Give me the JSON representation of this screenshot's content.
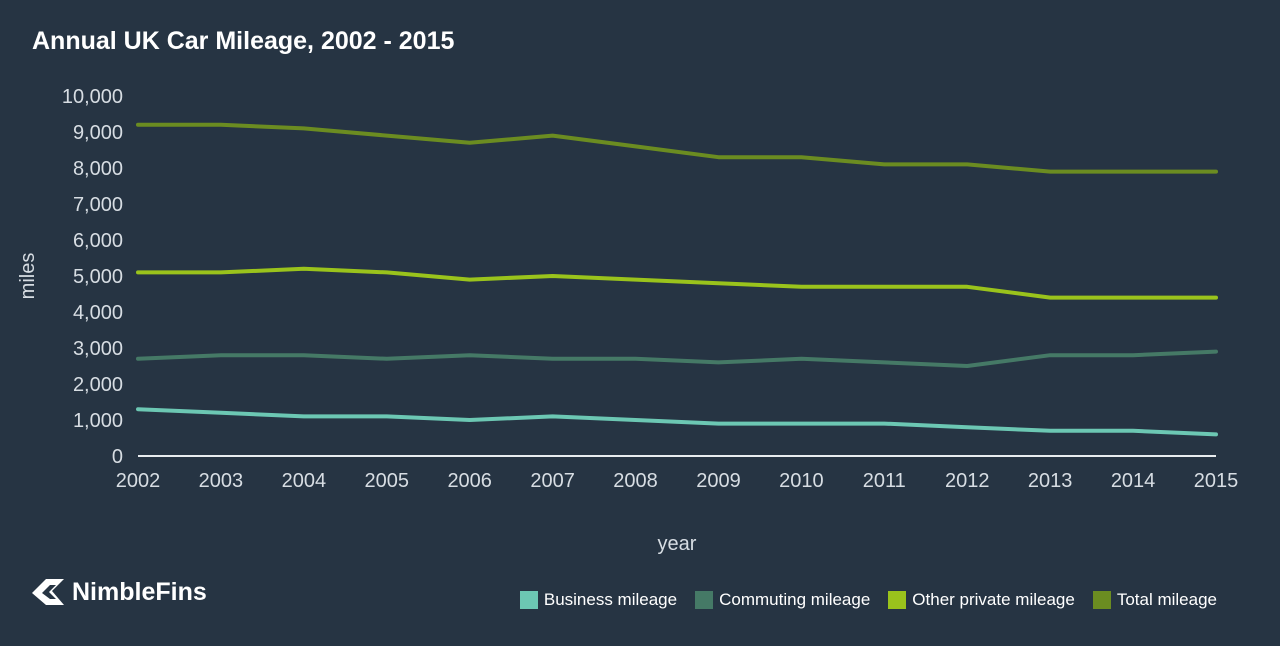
{
  "title": "Annual UK Car Mileage, 2002 - 2015",
  "brand": {
    "name": "NimbleFins",
    "icon": "nimblefins-logo-icon"
  },
  "colors": {
    "background": "#263443",
    "text": "#ffffff",
    "axis_text": "#d7dde3",
    "baseline": "#e8ecef"
  },
  "chart_data": {
    "type": "line",
    "title": "Annual UK Car Mileage, 2002 - 2015",
    "xlabel": "year",
    "ylabel": "miles",
    "x": [
      "2002",
      "2003",
      "2004",
      "2005",
      "2006",
      "2007",
      "2008",
      "2009",
      "2010",
      "2011",
      "2012",
      "2013",
      "2014",
      "2015"
    ],
    "y_ticks": [
      "0",
      "1,000",
      "2,000",
      "3,000",
      "4,000",
      "5,000",
      "6,000",
      "7,000",
      "8,000",
      "9,000",
      "10,000"
    ],
    "ylim": [
      0,
      10000
    ],
    "grid": false,
    "legend_position": "bottom-right",
    "series": [
      {
        "name": "Business mileage",
        "color": "#6cc7b3",
        "values": [
          1300,
          1200,
          1100,
          1100,
          1000,
          1100,
          1000,
          900,
          900,
          900,
          800,
          700,
          700,
          600
        ]
      },
      {
        "name": "Commuting mileage",
        "color": "#457966",
        "values": [
          2700,
          2800,
          2800,
          2700,
          2800,
          2700,
          2700,
          2600,
          2700,
          2600,
          2500,
          2800,
          2800,
          2900
        ]
      },
      {
        "name": "Other private mileage",
        "color": "#9ac31c",
        "values": [
          5100,
          5100,
          5200,
          5100,
          4900,
          5000,
          4900,
          4800,
          4700,
          4700,
          4700,
          4400,
          4400,
          4400
        ]
      },
      {
        "name": "Total mileage",
        "color": "#6b8c21",
        "values": [
          9200,
          9200,
          9100,
          8900,
          8700,
          8900,
          8600,
          8300,
          8300,
          8100,
          8100,
          7900,
          7900,
          7900
        ]
      }
    ]
  }
}
